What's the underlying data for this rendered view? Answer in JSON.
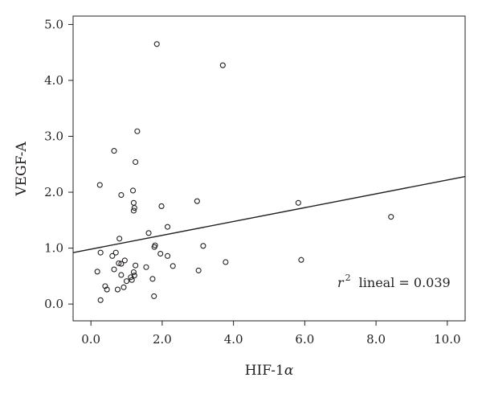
{
  "chart_data": {
    "type": "scatter",
    "title": "",
    "xlabel_main": "HIF-1",
    "xlabel_greek": "α",
    "ylabel": "VEGF-A",
    "xlim": [
      -0.5,
      10.5
    ],
    "ylim": [
      -0.3,
      5.15
    ],
    "x_ticks": [
      0,
      2,
      4,
      6,
      8,
      10
    ],
    "x_tick_labels": [
      "0.0",
      "2.0",
      "4.0",
      "6.0",
      "8.0",
      "10.0"
    ],
    "y_ticks": [
      0,
      1,
      2,
      3,
      4,
      5
    ],
    "y_tick_labels": [
      "0.0",
      "1.0",
      "2.0",
      "3.0",
      "4.0",
      "5.0"
    ],
    "grid": false,
    "annotation": {
      "r": "r",
      "sup": "2",
      "text": "lineal = 0.039"
    },
    "fit_line": {
      "x": [
        -0.5,
        10.5
      ],
      "y": [
        0.92,
        2.28
      ]
    },
    "points": [
      {
        "x": 1.85,
        "y": 4.65
      },
      {
        "x": 3.7,
        "y": 4.27
      },
      {
        "x": 1.3,
        "y": 3.09
      },
      {
        "x": 0.65,
        "y": 2.74
      },
      {
        "x": 1.25,
        "y": 2.54
      },
      {
        "x": 0.25,
        "y": 2.13
      },
      {
        "x": 1.18,
        "y": 2.03
      },
      {
        "x": 0.85,
        "y": 1.95
      },
      {
        "x": 2.98,
        "y": 1.84
      },
      {
        "x": 5.82,
        "y": 1.81
      },
      {
        "x": 1.2,
        "y": 1.81
      },
      {
        "x": 1.98,
        "y": 1.75
      },
      {
        "x": 1.22,
        "y": 1.72
      },
      {
        "x": 1.2,
        "y": 1.67
      },
      {
        "x": 8.42,
        "y": 1.56
      },
      {
        "x": 2.15,
        "y": 1.38
      },
      {
        "x": 1.62,
        "y": 1.27
      },
      {
        "x": 0.8,
        "y": 1.17
      },
      {
        "x": 3.15,
        "y": 1.04
      },
      {
        "x": 1.8,
        "y": 1.05
      },
      {
        "x": 1.78,
        "y": 1.02
      },
      {
        "x": 0.27,
        "y": 0.92
      },
      {
        "x": 0.7,
        "y": 0.92
      },
      {
        "x": 1.95,
        "y": 0.9
      },
      {
        "x": 0.6,
        "y": 0.86
      },
      {
        "x": 2.15,
        "y": 0.86
      },
      {
        "x": 0.95,
        "y": 0.78
      },
      {
        "x": 5.9,
        "y": 0.79
      },
      {
        "x": 3.78,
        "y": 0.75
      },
      {
        "x": 0.78,
        "y": 0.73
      },
      {
        "x": 0.85,
        "y": 0.72
      },
      {
        "x": 1.25,
        "y": 0.69
      },
      {
        "x": 2.3,
        "y": 0.68
      },
      {
        "x": 1.55,
        "y": 0.66
      },
      {
        "x": 0.65,
        "y": 0.62
      },
      {
        "x": 0.18,
        "y": 0.58
      },
      {
        "x": 3.02,
        "y": 0.6
      },
      {
        "x": 1.2,
        "y": 0.57
      },
      {
        "x": 0.85,
        "y": 0.52
      },
      {
        "x": 1.22,
        "y": 0.51
      },
      {
        "x": 1.12,
        "y": 0.48
      },
      {
        "x": 1.73,
        "y": 0.45
      },
      {
        "x": 1.0,
        "y": 0.41
      },
      {
        "x": 1.15,
        "y": 0.43
      },
      {
        "x": 0.4,
        "y": 0.32
      },
      {
        "x": 0.92,
        "y": 0.3
      },
      {
        "x": 0.45,
        "y": 0.26
      },
      {
        "x": 0.75,
        "y": 0.26
      },
      {
        "x": 1.77,
        "y": 0.14
      },
      {
        "x": 0.27,
        "y": 0.07
      }
    ]
  }
}
